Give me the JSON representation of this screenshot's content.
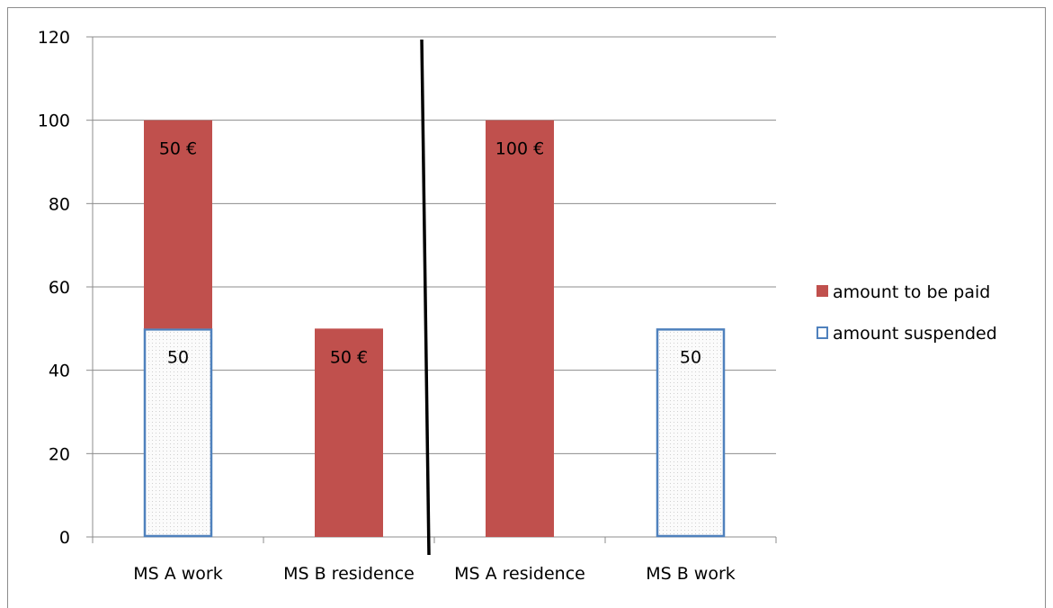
{
  "chart_data": {
    "type": "bar",
    "stacked": true,
    "categories": [
      "MS A work",
      "MS B residence",
      "MS A residence",
      "MS B work"
    ],
    "series": [
      {
        "name": "amount suspended",
        "values": [
          50,
          0,
          0,
          50
        ],
        "color": "#4F81BD",
        "style": "outline-dotted"
      },
      {
        "name": "amount to be paid",
        "values": [
          50,
          50,
          100,
          0
        ],
        "color": "#C0504D",
        "style": "solid"
      }
    ],
    "data_labels": [
      {
        "category": 0,
        "series": 1,
        "text": "50 €"
      },
      {
        "category": 0,
        "series": 0,
        "text": "50"
      },
      {
        "category": 1,
        "series": 1,
        "text": "50 €"
      },
      {
        "category": 2,
        "series": 1,
        "text": "100 €"
      },
      {
        "category": 3,
        "series": 0,
        "text": "50"
      }
    ],
    "y_ticks": [
      "0",
      "20",
      "40",
      "60",
      "80",
      "100",
      "120"
    ],
    "ylim": [
      0,
      120
    ],
    "grid": true,
    "legend_position": "right",
    "legend_entries": [
      "amount to be paid",
      "amount suspended"
    ],
    "annotation": "black divider line between MS B residence and MS A residence"
  }
}
